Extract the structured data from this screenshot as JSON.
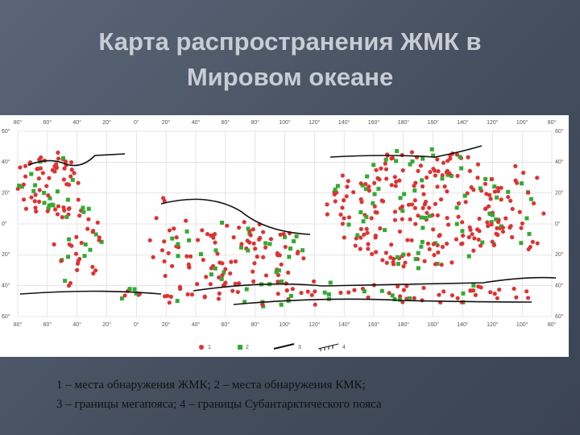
{
  "title_lines": [
    "Карта распространения ЖМК в",
    "Мировом океане"
  ],
  "map": {
    "top_labels": [
      "80°",
      "60°",
      "40°",
      "20°",
      "0°",
      "20°",
      "40°",
      "60°",
      "80°",
      "100°",
      "120°",
      "140°",
      "160°",
      "180°",
      "160°",
      "140°",
      "120°",
      "100°",
      "80°"
    ],
    "bottom_labels": [
      "80°",
      "60°",
      "40°",
      "20°",
      "0°",
      "20°",
      "40°",
      "60°",
      "80°",
      "100°",
      "120°",
      "140°",
      "160°",
      "180°",
      "160°",
      "140°",
      "120°",
      "100°",
      "80°"
    ],
    "left_labels": [
      "60°",
      "40°",
      "20°",
      "0°",
      "20°",
      "40°",
      "60°"
    ],
    "right_labels": [
      "60°",
      "40°",
      "20°",
      "0°",
      "20°",
      "40°",
      "60°"
    ],
    "legend": [
      "1",
      "2",
      "3",
      "4"
    ]
  },
  "caption": [
    "1 – места обнаружения ЖМК; 2 – места обнаружения КМК;",
    "3 – границы мегапояса; 4 – границы Субантарктического пояса"
  ]
}
